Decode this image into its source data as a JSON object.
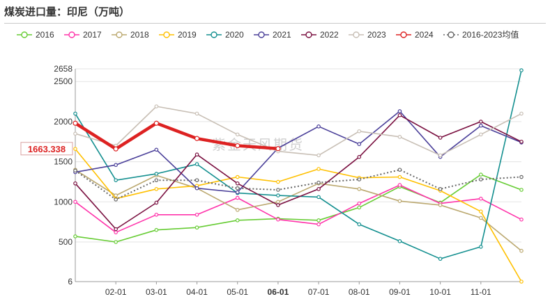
{
  "title": "煤炭进口量：印尼（万吨）",
  "watermark": "紫金天风期货",
  "chart_data": {
    "type": "line",
    "title": "煤炭进口量：印尼（万吨）",
    "xlabel": "",
    "ylabel": "",
    "x_ticks": [
      "02-01",
      "03-01",
      "04-01",
      "05-01",
      "06-01",
      "07-01",
      "08-01",
      "09-01",
      "10-01",
      "11-01"
    ],
    "highlight_tick": "06-01",
    "x_months": [
      1,
      2,
      3,
      4,
      5,
      6,
      7,
      8,
      9,
      10,
      11,
      12
    ],
    "y_ticks": [
      6,
      500,
      1000,
      1500,
      2000,
      2500,
      2658
    ],
    "ylim": [
      6,
      2658
    ],
    "grid": true,
    "legend_position": "top",
    "current_value_label": "1663.338",
    "series": [
      {
        "name": "2016",
        "color": "#66cc33",
        "dashed": false,
        "values": [
          570,
          500,
          650,
          680,
          770,
          790,
          770,
          930,
          1190,
          990,
          1340,
          1150
        ]
      },
      {
        "name": "2017",
        "color": "#ff33aa",
        "dashed": false,
        "values": [
          1000,
          620,
          840,
          840,
          1050,
          780,
          720,
          980,
          1210,
          980,
          1040,
          780
        ]
      },
      {
        "name": "2018",
        "color": "#bba86f",
        "dashed": false,
        "values": [
          1400,
          1080,
          1330,
          1170,
          900,
          1000,
          1230,
          1160,
          1010,
          960,
          800,
          390
        ]
      },
      {
        "name": "2019",
        "color": "#ffc000",
        "dashed": false,
        "values": [
          1660,
          1040,
          1160,
          1200,
          1310,
          1250,
          1410,
          1300,
          1310,
          1140,
          880,
          6
        ]
      },
      {
        "name": "2020",
        "color": "#138f8f",
        "dashed": false,
        "values": [
          2100,
          1270,
          1350,
          1470,
          1110,
          1080,
          1060,
          720,
          510,
          290,
          440,
          2640
        ]
      },
      {
        "name": "2021",
        "color": "#4a3f99",
        "dashed": false,
        "values": [
          1370,
          1460,
          1650,
          1170,
          1120,
          1670,
          1940,
          1720,
          2130,
          1560,
          1950,
          1740
        ]
      },
      {
        "name": "2022",
        "color": "#7a1040",
        "dashed": false,
        "values": [
          1230,
          660,
          990,
          1590,
          1230,
          960,
          1160,
          1560,
          2080,
          1800,
          2000,
          1750
        ]
      },
      {
        "name": "2023",
        "color": "#c8bfb5",
        "dashed": false,
        "values": [
          1850,
          1700,
          2190,
          2100,
          1840,
          1630,
          1580,
          1880,
          1810,
          1580,
          1840,
          2100
        ]
      },
      {
        "name": "2024",
        "color": "#dd2222",
        "dashed": false,
        "values": [
          1980,
          1660,
          1980,
          1790,
          1700,
          1663.338,
          null,
          null,
          null,
          null,
          null,
          null
        ]
      },
      {
        "name": "2016-2023均值",
        "color": "#666666",
        "dashed": true,
        "values": [
          1390,
          1030,
          1270,
          1270,
          1170,
          1150,
          1240,
          1280,
          1400,
          1160,
          1280,
          1310
        ]
      }
    ]
  }
}
